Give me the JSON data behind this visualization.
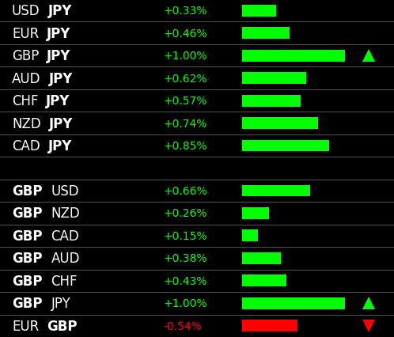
{
  "bg_color": "#000000",
  "line_color": "#555555",
  "rows1": [
    {
      "label1": "USD",
      "label2": "JPY",
      "bold1": false,
      "pct": "+0.33%",
      "bar_val": 0.33,
      "bar_color": "#00ff00",
      "arrow": null
    },
    {
      "label1": "EUR",
      "label2": "JPY",
      "bold1": false,
      "pct": "+0.46%",
      "bar_val": 0.46,
      "bar_color": "#00ff00",
      "arrow": null
    },
    {
      "label1": "GBP",
      "label2": "JPY",
      "bold1": false,
      "pct": "+1.00%",
      "bar_val": 1.0,
      "bar_color": "#00ff00",
      "arrow": "up"
    },
    {
      "label1": "AUD",
      "label2": "JPY",
      "bold1": false,
      "pct": "+0.62%",
      "bar_val": 0.62,
      "bar_color": "#00ff00",
      "arrow": null
    },
    {
      "label1": "CHF",
      "label2": "JPY",
      "bold1": false,
      "pct": "+0.57%",
      "bar_val": 0.57,
      "bar_color": "#00ff00",
      "arrow": null
    },
    {
      "label1": "NZD",
      "label2": "JPY",
      "bold1": false,
      "pct": "+0.74%",
      "bar_val": 0.74,
      "bar_color": "#00ff00",
      "arrow": null
    },
    {
      "label1": "CAD",
      "label2": "JPY",
      "bold1": false,
      "pct": "+0.85%",
      "bar_val": 0.85,
      "bar_color": "#00ff00",
      "arrow": null
    }
  ],
  "rows2": [
    {
      "label1": "GBP",
      "label2": "USD",
      "bold1": true,
      "pct": "+0.66%",
      "bar_val": 0.66,
      "bar_color": "#00ff00",
      "arrow": null
    },
    {
      "label1": "GBP",
      "label2": "NZD",
      "bold1": true,
      "pct": "+0.26%",
      "bar_val": 0.26,
      "bar_color": "#00ff00",
      "arrow": null
    },
    {
      "label1": "GBP",
      "label2": "CAD",
      "bold1": true,
      "pct": "+0.15%",
      "bar_val": 0.15,
      "bar_color": "#00ff00",
      "arrow": null
    },
    {
      "label1": "GBP",
      "label2": "AUD",
      "bold1": true,
      "pct": "+0.38%",
      "bar_val": 0.38,
      "bar_color": "#00ff00",
      "arrow": null
    },
    {
      "label1": "GBP",
      "label2": "CHF",
      "bold1": true,
      "pct": "+0.43%",
      "bar_val": 0.43,
      "bar_color": "#00ff00",
      "arrow": null
    },
    {
      "label1": "GBP",
      "label2": "JPY",
      "bold1": true,
      "pct": "+1.00%",
      "bar_val": 1.0,
      "bar_color": "#00ff00",
      "arrow": "up"
    },
    {
      "label1": "EUR",
      "label2": "GBP",
      "bold1": false,
      "pct": "-0.54%",
      "bar_val": -0.54,
      "bar_color": "#ff0000",
      "arrow": "down"
    }
  ],
  "pct_color_pos": "#00ff00",
  "pct_color_neg": "#ff0000",
  "text_color": "#ffffff",
  "max_bar": 1.0,
  "label_fontsize": 12,
  "pct_fontsize": 10,
  "fig_w": 4.98,
  "fig_h": 4.27,
  "dpi": 100
}
